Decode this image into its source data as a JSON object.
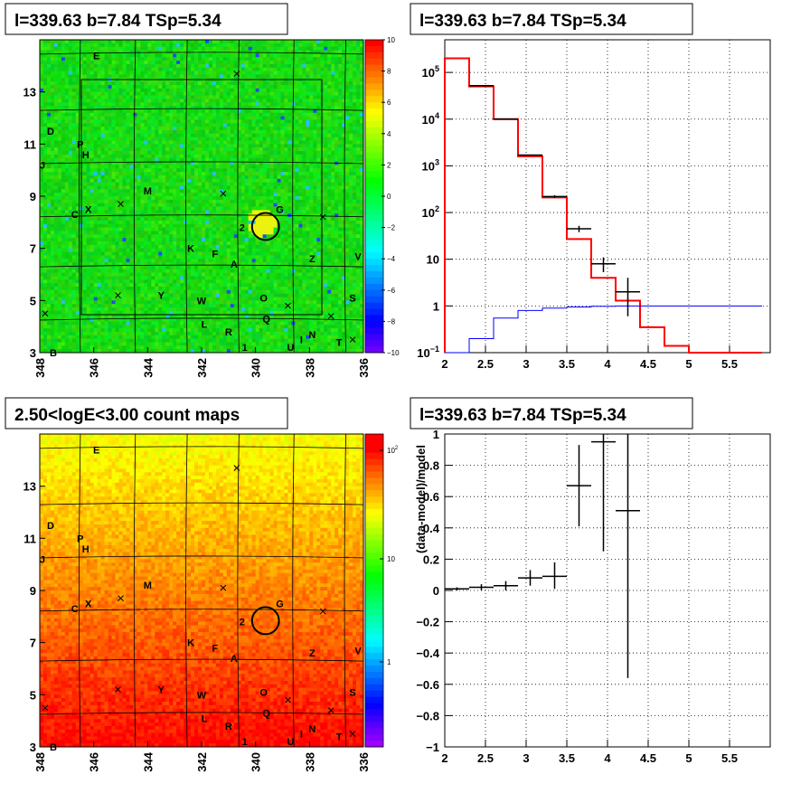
{
  "chart_data": [
    {
      "type": "heatmap",
      "title": "l=339.63 b=7.84 TSp=5.34",
      "xlim": [
        348,
        336
      ],
      "ylim": [
        3,
        15
      ],
      "x_ticks": [
        "348",
        "346",
        "344",
        "342",
        "340",
        "338",
        "336"
      ],
      "y_ticks": [
        "3",
        "5",
        "7",
        "9",
        "11",
        "13"
      ],
      "colorbar": {
        "min": -10,
        "max": 10,
        "ticks": [
          "10",
          "8",
          "6",
          "4",
          "2",
          "0",
          "−2",
          "−4",
          "−6",
          "−8",
          "−10"
        ]
      },
      "sources": [
        {
          "label": "E",
          "l": 345.9,
          "b": 14.4
        },
        {
          "label": "D",
          "l": 347.6,
          "b": 11.5
        },
        {
          "label": "P",
          "l": 346.5,
          "b": 11.0
        },
        {
          "label": "H",
          "l": 346.3,
          "b": 10.6
        },
        {
          "label": "J",
          "l": 347.9,
          "b": 10.2
        },
        {
          "label": "M",
          "l": 344.0,
          "b": 9.2
        },
        {
          "label": "X",
          "l": 346.2,
          "b": 8.5
        },
        {
          "label": "C",
          "l": 346.7,
          "b": 8.3
        },
        {
          "label": "G",
          "l": 339.1,
          "b": 8.5
        },
        {
          "label": "2",
          "l": 340.5,
          "b": 7.8
        },
        {
          "label": "K",
          "l": 342.4,
          "b": 7.0
        },
        {
          "label": "F",
          "l": 341.5,
          "b": 6.8
        },
        {
          "label": "A",
          "l": 340.8,
          "b": 6.4
        },
        {
          "label": "Z",
          "l": 337.9,
          "b": 6.6
        },
        {
          "label": "V",
          "l": 336.2,
          "b": 6.7
        },
        {
          "label": "Y",
          "l": 343.5,
          "b": 5.2
        },
        {
          "label": "W",
          "l": 342.0,
          "b": 5.0
        },
        {
          "label": "O",
          "l": 339.7,
          "b": 5.1
        },
        {
          "label": "S",
          "l": 336.4,
          "b": 5.1
        },
        {
          "label": "Q",
          "l": 339.6,
          "b": 4.3
        },
        {
          "label": "L",
          "l": 341.9,
          "b": 4.1
        },
        {
          "label": "R",
          "l": 341.0,
          "b": 3.8
        },
        {
          "label": "N",
          "l": 337.9,
          "b": 3.7
        },
        {
          "label": "I",
          "l": 338.3,
          "b": 3.5
        },
        {
          "label": "U",
          "l": 338.7,
          "b": 3.2
        },
        {
          "label": "T",
          "l": 336.9,
          "b": 3.4
        },
        {
          "label": "1",
          "l": 340.4,
          "b": 3.2
        },
        {
          "label": "B",
          "l": 347.5,
          "b": 3.0
        }
      ],
      "crosses": [
        [
          340.7,
          13.7
        ],
        [
          341.2,
          9.1
        ],
        [
          345.0,
          8.7
        ],
        [
          337.5,
          8.2
        ],
        [
          345.1,
          5.2
        ],
        [
          338.8,
          4.8
        ],
        [
          337.2,
          4.4
        ],
        [
          336.4,
          3.5
        ],
        [
          347.8,
          4.5
        ]
      ],
      "circle": {
        "l": 339.63,
        "b": 7.84,
        "r": 0.5
      }
    },
    {
      "type": "line",
      "title": "l=339.63 b=7.84 TSp=5.34",
      "xlim": [
        2,
        6
      ],
      "ylim": [
        0.1,
        500000
      ],
      "yscale": "log",
      "x_ticks": [
        "2",
        "2.5",
        "3",
        "3.5",
        "4",
        "4.5",
        "5",
        "5.5"
      ],
      "y_ticks": [
        {
          "base": "10",
          "exp": "5",
          "value": 100000
        },
        {
          "base": "10",
          "exp": "4",
          "value": 10000
        },
        {
          "base": "10",
          "exp": "3",
          "value": 1000
        },
        {
          "base": "10",
          "exp": "2",
          "value": 100
        },
        {
          "base": "10",
          "exp": "",
          "value": 10
        },
        {
          "base": "1",
          "exp": "",
          "value": 1
        },
        {
          "base": "10",
          "exp": "−1",
          "value": 0.1
        }
      ],
      "grid": true,
      "bin_edges": [
        2.0,
        2.3,
        2.6,
        2.9,
        3.2,
        3.5,
        3.8,
        4.1,
        4.4,
        4.7,
        5.0,
        5.3,
        5.6,
        5.9
      ],
      "series": [
        {
          "color": "#ff0000",
          "values": [
            200000,
            50000,
            10000,
            1600,
            210,
            27,
            4,
            1.3,
            0.35,
            0.14,
            0.1,
            0.1,
            0.1
          ]
        },
        {
          "color": "#0000ff",
          "values": [
            0.06,
            0.2,
            0.55,
            0.8,
            0.9,
            0.95,
            0.98,
            1.0,
            1.0,
            1.0,
            1.0,
            1.0,
            1.0
          ]
        }
      ],
      "data_points": [
        {
          "x": 2.45,
          "xerr": 0.15,
          "y": 52000,
          "ylo": 51500,
          "yhi": 52500
        },
        {
          "x": 2.75,
          "xerr": 0.15,
          "y": 10000,
          "ylo": 9900,
          "yhi": 10100
        },
        {
          "x": 3.05,
          "xerr": 0.15,
          "y": 1700,
          "ylo": 1660,
          "yhi": 1740
        },
        {
          "x": 3.35,
          "xerr": 0.15,
          "y": 220,
          "ylo": 205,
          "yhi": 235
        },
        {
          "x": 3.65,
          "xerr": 0.15,
          "y": 45,
          "ylo": 38,
          "yhi": 52
        },
        {
          "x": 3.95,
          "xerr": 0.15,
          "y": 8,
          "ylo": 5.3,
          "yhi": 11
        },
        {
          "x": 4.25,
          "xerr": 0.15,
          "y": 2,
          "ylo": 0.6,
          "yhi": 4
        }
      ]
    },
    {
      "type": "heatmap",
      "title": "2.50<logE<3.00 count maps",
      "xlim": [
        348,
        336
      ],
      "ylim": [
        3,
        15
      ],
      "x_ticks": [
        "348",
        "346",
        "344",
        "342",
        "340",
        "338",
        "336"
      ],
      "y_ticks": [
        "3",
        "5",
        "7",
        "9",
        "11",
        "13"
      ],
      "colorbar": {
        "scale": "log",
        "ticks": [
          {
            "base": "10",
            "exp": "2",
            "value": 100
          },
          {
            "base": "10",
            "exp": "",
            "value": 10
          },
          {
            "base": "1",
            "exp": "",
            "value": 1
          }
        ]
      }
    },
    {
      "type": "scatter",
      "title": "l=339.63 b=7.84 TSp=5.34",
      "ylabel": "(data-model)/model",
      "xlim": [
        2,
        6
      ],
      "ylim": [
        -1,
        1
      ],
      "x_ticks": [
        "2",
        "2.5",
        "3",
        "3.5",
        "4",
        "4.5",
        "5",
        "5.5"
      ],
      "y_ticks": [
        "1",
        "0.8",
        "0.6",
        "0.4",
        "0.2",
        "0",
        "−0.2",
        "−0.4",
        "−0.6",
        "−0.8",
        "−1"
      ],
      "grid": true,
      "points": [
        {
          "x": 2.15,
          "xerr": 0.15,
          "y": 0.01,
          "ylo": 0.0,
          "yhi": 0.02
        },
        {
          "x": 2.45,
          "xerr": 0.15,
          "y": 0.02,
          "ylo": 0.0,
          "yhi": 0.04
        },
        {
          "x": 2.75,
          "xerr": 0.15,
          "y": 0.03,
          "ylo": 0.0,
          "yhi": 0.06
        },
        {
          "x": 3.05,
          "xerr": 0.15,
          "y": 0.08,
          "ylo": 0.03,
          "yhi": 0.13
        },
        {
          "x": 3.35,
          "xerr": 0.15,
          "y": 0.09,
          "ylo": 0.01,
          "yhi": 0.18
        },
        {
          "x": 3.65,
          "xerr": 0.15,
          "y": 0.67,
          "ylo": 0.41,
          "yhi": 0.93
        },
        {
          "x": 3.95,
          "xerr": 0.15,
          "y": 0.95,
          "ylo": 0.25,
          "yhi": 1.0
        },
        {
          "x": 4.25,
          "xerr": 0.15,
          "y": 0.51,
          "ylo": -0.56,
          "yhi": 1.0
        }
      ]
    }
  ]
}
